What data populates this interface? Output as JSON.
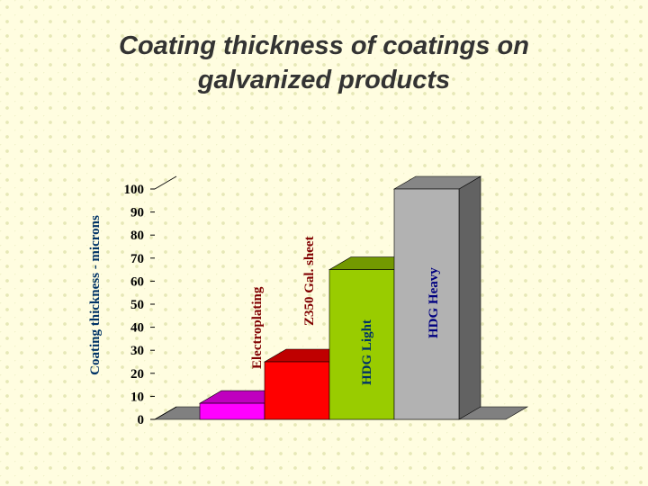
{
  "chart_data": {
    "type": "bar",
    "title_lines": [
      "Coating thickness of coatings on",
      "galvanized products"
    ],
    "ylabel": "Coating thickness - microns",
    "ylim": [
      0,
      100
    ],
    "yticks": [
      "0",
      "10",
      "20",
      "30",
      "40",
      "50",
      "60",
      "70",
      "80",
      "90",
      "100"
    ],
    "categories": [
      "Electroplating",
      "Z350 Gal. sheet",
      "HDG Light",
      "HDG Heavy"
    ],
    "values": [
      7,
      25,
      65,
      100
    ],
    "colors": [
      "#ff00ff",
      "#ff0000",
      "#99cc00",
      "#b2b2b2"
    ],
    "label_colors": [
      "#800000",
      "#800000",
      "#003366",
      "#000080"
    ],
    "grid": false,
    "legend": "none"
  }
}
